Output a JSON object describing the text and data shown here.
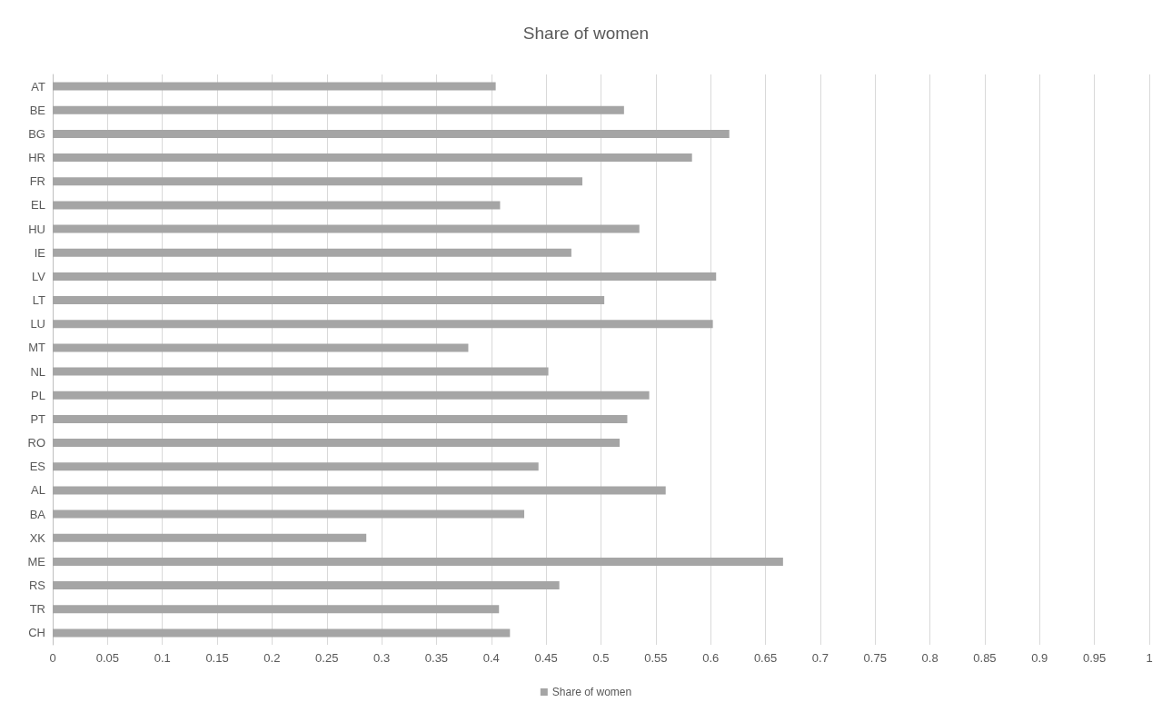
{
  "chart_data": {
    "type": "bar",
    "orientation": "horizontal",
    "title": "Share of women",
    "categories": [
      "AT",
      "BE",
      "BG",
      "HR",
      "FR",
      "EL",
      "HU",
      "IE",
      "LV",
      "LT",
      "LU",
      "MT",
      "NL",
      "PL",
      "PT",
      "RO",
      "ES",
      "AL",
      "BA",
      "XK",
      "ME",
      "RS",
      "TR",
      "CH"
    ],
    "series": [
      {
        "name": "Share of women",
        "color": "#a5a5a5",
        "values": [
          0.404,
          0.521,
          0.617,
          0.583,
          0.483,
          0.408,
          0.535,
          0.473,
          0.605,
          0.503,
          0.602,
          0.379,
          0.452,
          0.544,
          0.524,
          0.517,
          0.443,
          0.559,
          0.43,
          0.286,
          0.666,
          0.462,
          0.407,
          0.417
        ]
      }
    ],
    "xlim": [
      0,
      1
    ],
    "xticks": [
      0,
      0.05,
      0.1,
      0.15,
      0.2,
      0.25,
      0.3,
      0.35,
      0.4,
      0.45,
      0.5,
      0.55,
      0.6,
      0.65,
      0.7,
      0.75,
      0.8,
      0.85,
      0.9,
      0.95,
      1
    ],
    "grid": "x",
    "legend": "bottom"
  }
}
